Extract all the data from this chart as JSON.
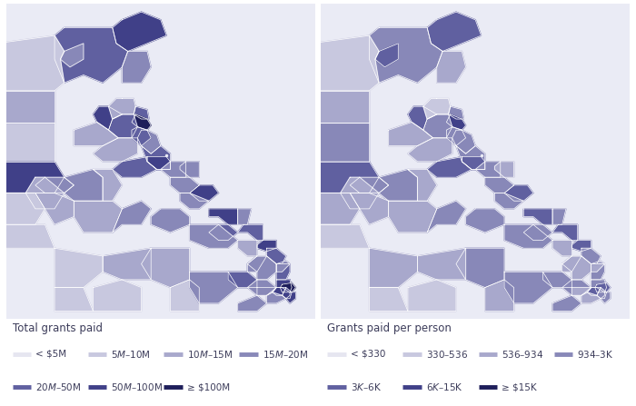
{
  "fig_background": "#ffffff",
  "map_background": "#eaebf5",
  "text_color": "#3c3c5a",
  "outline_color": "#ffffff",
  "legend1_title": "Total grants paid",
  "legend2_title": "Grants paid per person",
  "legend1_items": [
    {
      "label": "< $5M",
      "color": "#e6e6f0"
    },
    {
      "label": "$5M–$10M",
      "color": "#c8c8df"
    },
    {
      "label": "$10M–$15M",
      "color": "#a8a8cc"
    },
    {
      "label": "$15M–$20M",
      "color": "#8888b8"
    },
    {
      "label": "$20M–$50M",
      "color": "#6060a0"
    },
    {
      "label": "$50M–$100M",
      "color": "#404088"
    },
    {
      "label": "≥ $100M",
      "color": "#1e1e5a"
    }
  ],
  "legend2_items": [
    {
      "label": "< $330",
      "color": "#e6e6f0"
    },
    {
      "label": "$330–$536",
      "color": "#c8c8df"
    },
    {
      "label": "$536–$934",
      "color": "#a8a8cc"
    },
    {
      "label": "$934–$3K",
      "color": "#8888b8"
    },
    {
      "label": "$3K–$6K",
      "color": "#6060a0"
    },
    {
      "label": "$6K–$15K",
      "color": "#404088"
    },
    {
      "label": "≥ $15K",
      "color": "#1e1e5a"
    }
  ],
  "title_fontsize": 8.5,
  "legend_fontsize": 7.5
}
